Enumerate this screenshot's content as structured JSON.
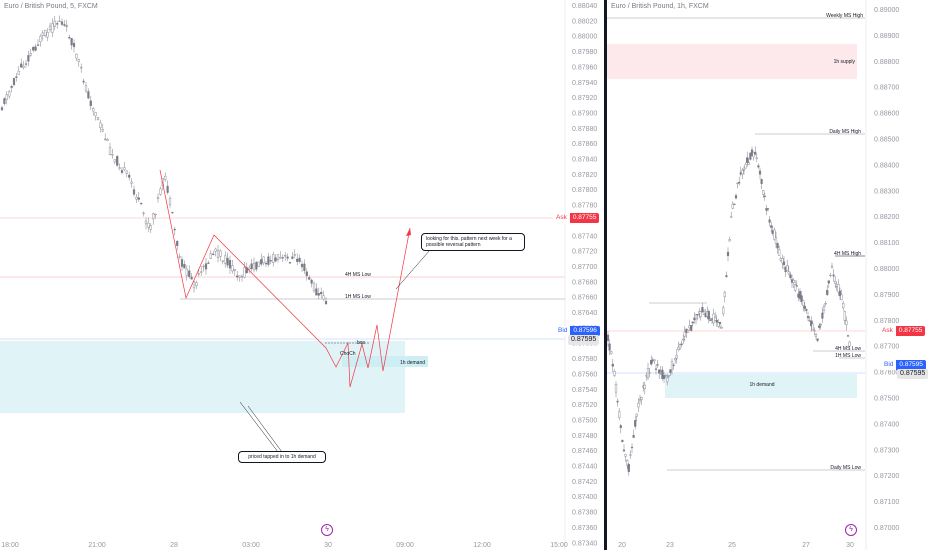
{
  "left_chart": {
    "title": "Euro / British Pound, 5, FXCM",
    "price_axis": [
      "0.88040",
      "0.88020",
      "0.88000",
      "0.87980",
      "0.87960",
      "0.87940",
      "0.87920",
      "0.87900",
      "0.87880",
      "0.87860",
      "0.87840",
      "0.87820",
      "0.87800",
      "0.87780",
      "0.87760",
      "0.87740",
      "0.87720",
      "0.87700",
      "0.87680",
      "0.87660",
      "0.87640",
      "0.87620",
      "0.87600",
      "0.87580",
      "0.87560",
      "0.87540",
      "0.87520",
      "0.87500",
      "0.87480",
      "0.87460",
      "0.87440",
      "0.87420",
      "0.87400",
      "0.87380",
      "0.87360",
      "0.87340"
    ],
    "time_axis": [
      "18:00",
      "21:00",
      "28",
      "03:00",
      "30",
      "09:00",
      "12:00",
      "15:00"
    ],
    "ask_label": "Ask",
    "ask_price": "0.87755",
    "bid_label": "Bid",
    "bid_price": "0.87596",
    "last_price": "0.87595",
    "labels": {
      "h4_low": "4H MS Low",
      "h1_low": "1H MS Low",
      "bos": "bos",
      "choch": "ChoCh",
      "demand": "1h demand"
    },
    "note_pattern": "looking for this. pattern next week for a possible reversal pattern",
    "note_tapped": "priced tapped in to 1h demand"
  },
  "right_chart": {
    "title": "Euro / British Pound, 1h, FXCM",
    "price_axis": [
      "0.89000",
      "0.88900",
      "0.88800",
      "0.88700",
      "0.88600",
      "0.88500",
      "0.88400",
      "0.88300",
      "0.88200",
      "0.88100",
      "0.88000",
      "0.87900",
      "0.87800",
      "0.87700",
      "0.87600",
      "0.87500",
      "0.87400",
      "0.87300",
      "0.87200",
      "0.87100",
      "0.87000"
    ],
    "time_axis": [
      "20",
      "23",
      "25",
      "27",
      "30"
    ],
    "ask_label": "Ask",
    "ask_price": "0.87755",
    "bid_label": "Bid",
    "bid_price": "0.87595",
    "last_price": "0.87595",
    "labels": {
      "weekly_high": "Weekly MS High",
      "supply": "1h supply",
      "daily_high": "Daily MS High",
      "h4_high": "4H MS High",
      "h4_low": "4H MS Low",
      "h1_low": "1H MS Low",
      "demand": "1h demand",
      "daily_low": "Daily MS Low"
    }
  },
  "colors": {
    "ask": "#f23645",
    "bid": "#2962ff",
    "demand_zone": "#e0f4f8",
    "supply_zone": "#fde8ec",
    "candle": "#787b86",
    "projection": "#f23645"
  }
}
